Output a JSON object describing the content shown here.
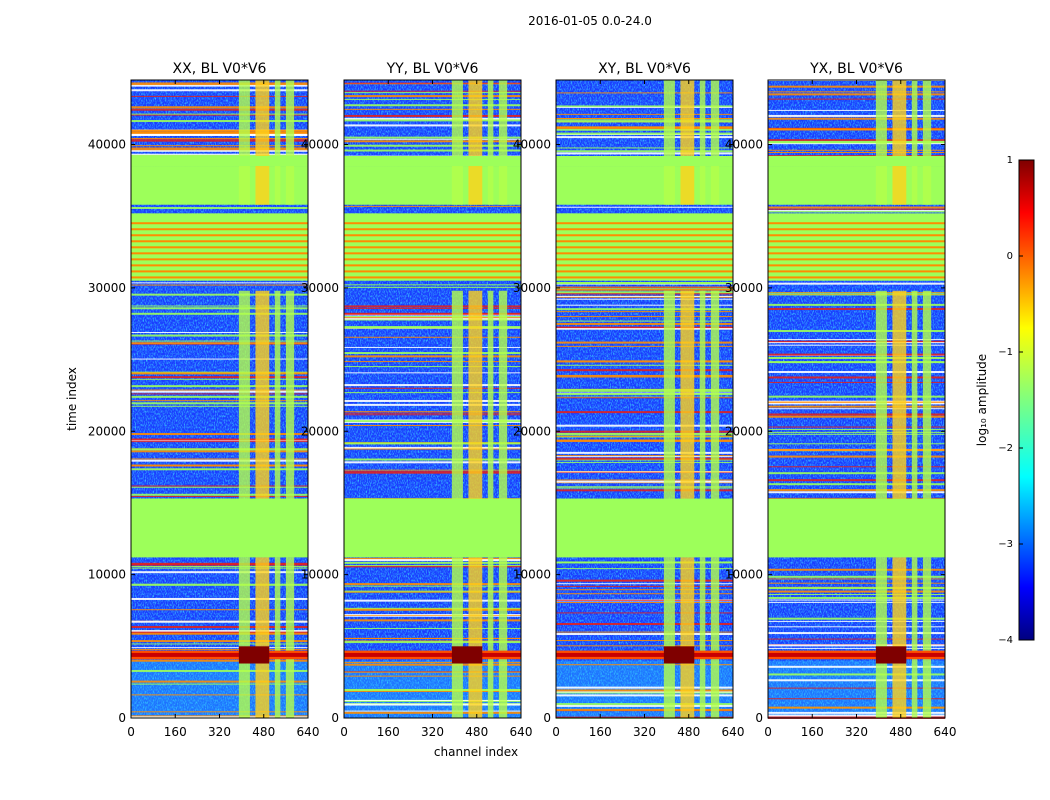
{
  "suptitle": "2016-01-05 0.0-24.0",
  "chart_data": {
    "type": "heatmap",
    "panels": [
      {
        "title": "XX, BL V0*V6",
        "pol": "XX"
      },
      {
        "title": "YY, BL V0*V6",
        "pol": "YY"
      },
      {
        "title": "XY, BL V0*V6",
        "pol": "XY"
      },
      {
        "title": "YX, BL V0*V6",
        "pol": "YX"
      }
    ],
    "xlabel": "channel index",
    "ylabel": "time index",
    "xlim": [
      0,
      640
    ],
    "ylim": [
      0,
      44500
    ],
    "xticks": [
      0,
      160,
      320,
      480,
      640
    ],
    "yticks": [
      0,
      10000,
      20000,
      30000,
      40000
    ],
    "colorbar": {
      "label": "log₁₀ amplitude",
      "range": [
        -4,
        1
      ],
      "ticks": [
        1,
        0,
        -1,
        -2,
        -3,
        -4
      ],
      "tick_labels": [
        "1",
        "0",
        "−1",
        "−2",
        "−3",
        "−4"
      ],
      "colormap": "jet"
    },
    "flagged_time_ranges": [
      [
        15300,
        15000
      ],
      [
        11200,
        15300
      ],
      [
        30500,
        35200
      ],
      [
        35800,
        38500
      ],
      [
        38500,
        39200
      ]
    ],
    "flag_value": -1.3,
    "rfi_channel_ranges": [
      [
        390,
        430
      ],
      [
        450,
        500
      ],
      [
        520,
        540
      ],
      [
        560,
        590
      ]
    ],
    "bright_time_range": [
      4100,
      4700
    ]
  },
  "colors": {
    "flag_fill": "#9dff5a",
    "line_orange": "#ff8c00",
    "line_red": "#e02020",
    "line_blue": "#1028ff",
    "bg_blue": "#1a3cff"
  }
}
